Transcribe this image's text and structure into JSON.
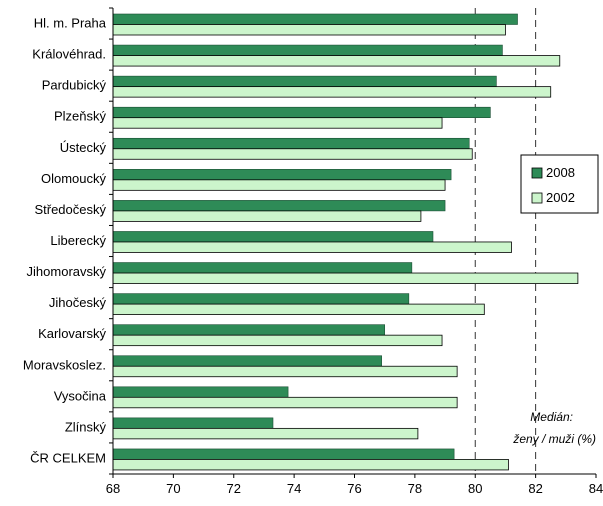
{
  "chart_data": {
    "type": "bar",
    "orientation": "horizontal",
    "categories": [
      "Hl. m. Praha",
      "Královéhrad.",
      "Pardubický",
      "Plzeňský",
      "Ústecký",
      "Olomoucký",
      "Středočeský",
      "Liberecký",
      "Jihomoravský",
      "Jihočeský",
      "Karlovarský",
      "Moravskoslez.",
      "Vysočina",
      "Zlínský",
      "ČR CELKEM"
    ],
    "series": [
      {
        "name": "2008",
        "color": "#2e8b57",
        "values": [
          81.4,
          80.9,
          80.7,
          80.5,
          79.8,
          79.2,
          79.0,
          78.6,
          77.9,
          77.8,
          77.0,
          76.9,
          73.8,
          73.3,
          79.3
        ]
      },
      {
        "name": "2002",
        "color": "#ccf5cc",
        "values": [
          81.0,
          82.8,
          82.5,
          78.9,
          79.9,
          79.0,
          78.2,
          81.2,
          83.4,
          80.3,
          78.9,
          79.4,
          79.4,
          78.1,
          81.1
        ]
      }
    ],
    "xlim": [
      68,
      84
    ],
    "x_ticks": [
      "68",
      "70",
      "72",
      "74",
      "76",
      "78",
      "80",
      "82",
      "84"
    ],
    "gridlines": [
      80,
      82
    ],
    "legend_position": "right",
    "annotation": [
      "Medián:",
      "ženy / muži (%)"
    ],
    "xlabel": "",
    "ylabel": ""
  }
}
